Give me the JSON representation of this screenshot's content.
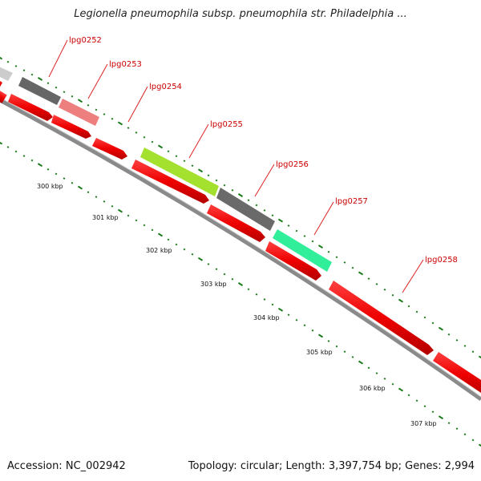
{
  "title": "Legionella pneumophila subsp. pneumophila str. Philadelphia ...",
  "footer": {
    "accession_label": "Accession:",
    "accession_value": "NC_002942",
    "topology_label": "Topology:",
    "topology_value": "circular",
    "length_label": "Length:",
    "length_value": "3,397,754 bp",
    "genes_label": "Genes:",
    "genes_value": "2,994"
  },
  "map": {
    "unit": "kbp",
    "tick_labels": [
      "300 kbp",
      "301 kbp",
      "302 kbp",
      "303 kbp",
      "304 kbp",
      "305 kbp",
      "306 kbp",
      "307 kbp"
    ],
    "forward_strand_genes": [
      {
        "label": "lpg0252",
        "color": "#6b6b6b"
      },
      {
        "label": "lpg0253",
        "color": "#ee8080"
      },
      {
        "label": "lpg0255",
        "color": "#aaee33"
      },
      {
        "label": "lpg0256",
        "color": "#6b6b6b"
      },
      {
        "label": "lpg0257",
        "color": "#33ee99"
      }
    ],
    "labeled_genes": [
      "lpg0252",
      "lpg0253",
      "lpg0254",
      "lpg0255",
      "lpg0256",
      "lpg0257",
      "lpg0258"
    ],
    "colors": {
      "backbone": "#888888",
      "gene_default": "#ee0000",
      "label": "#cc0000",
      "tick": "#1a7a1a"
    }
  }
}
